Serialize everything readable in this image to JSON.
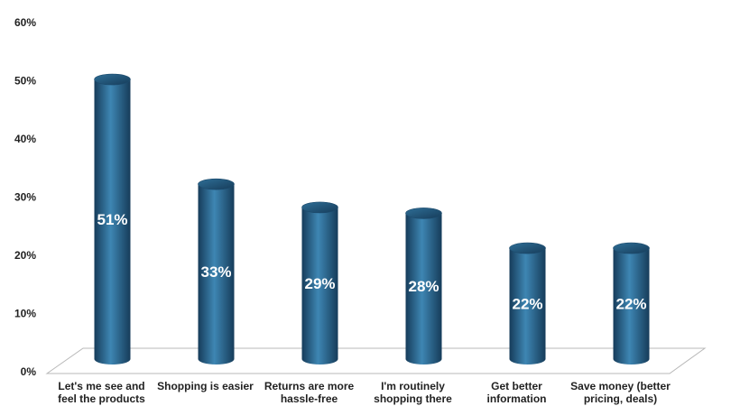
{
  "chart_data": {
    "type": "bar",
    "style": "3d-cylinder",
    "title": "",
    "xlabel": "",
    "ylabel": "",
    "categories": [
      [
        "Let's me see and",
        "feel the products"
      ],
      [
        "Shopping is easier"
      ],
      [
        "Returns are more",
        "hassle-free"
      ],
      [
        "I'm routinely",
        "shopping there"
      ],
      [
        "Get better",
        "information"
      ],
      [
        "Save money (better",
        "pricing, deals)"
      ]
    ],
    "values": [
      51,
      33,
      29,
      28,
      22,
      22
    ],
    "data_labels": [
      "51%",
      "33%",
      "29%",
      "28%",
      "22%",
      "22%"
    ],
    "ylim": [
      0,
      60
    ],
    "yticks": [
      0,
      10,
      20,
      30,
      40,
      50,
      60
    ],
    "ytick_labels": [
      "0%",
      "10%",
      "20%",
      "30%",
      "40%",
      "50%",
      "60%"
    ],
    "grid": false,
    "legend": "none",
    "colors": {
      "bar_dark": "#163c5a",
      "bar_mid": "#2f6f97",
      "bar_light": "#3e86b3",
      "floor": "#ffffff",
      "floor_stroke": "#b8b8b8"
    }
  }
}
